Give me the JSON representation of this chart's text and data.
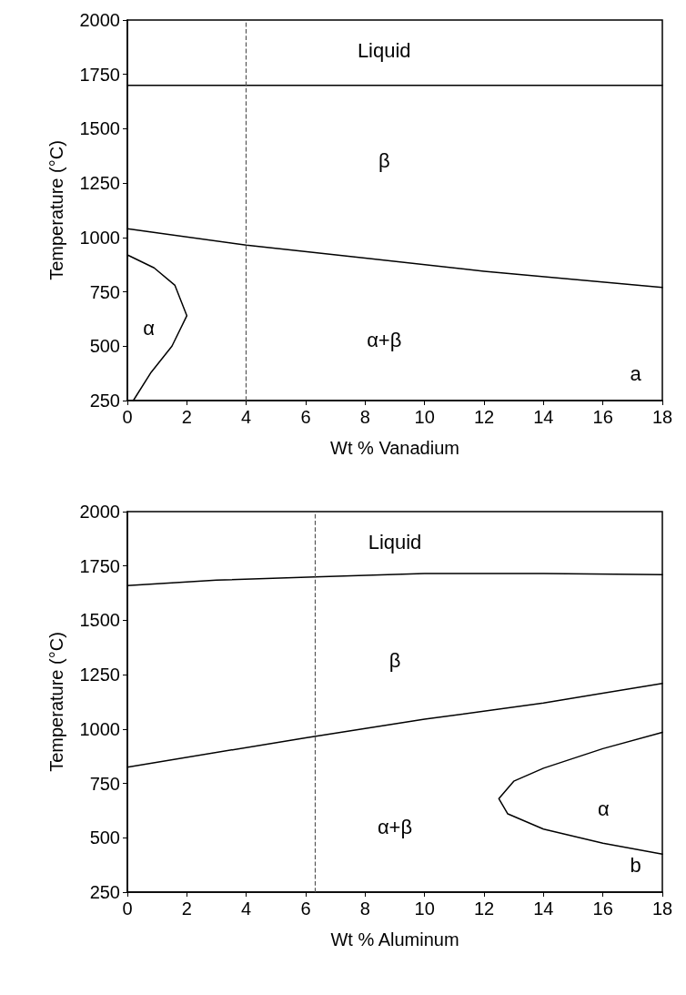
{
  "chart_data": [
    {
      "type": "line",
      "xlabel": "Wt % Vanadium",
      "ylabel": "Temperature (°C)",
      "xlim": [
        0,
        18
      ],
      "xticks": [
        0,
        2,
        4,
        6,
        8,
        10,
        12,
        14,
        16,
        18
      ],
      "ylim": [
        250,
        2000
      ],
      "yticks": [
        250,
        500,
        750,
        1000,
        1250,
        1500,
        1750,
        2000
      ],
      "grid": false,
      "marker": "none",
      "line_style": "solid",
      "series": [
        {
          "color": "#000000",
          "x": [
            0,
            18
          ],
          "values": [
            1700,
            1700
          ]
        },
        {
          "color": "#000000",
          "x": [
            0,
            4,
            8,
            12,
            18
          ],
          "values": [
            1040,
            965,
            905,
            845,
            770
          ]
        },
        {
          "color": "#000000",
          "x": [
            0.2,
            0.8,
            1.5,
            2.0,
            1.6,
            0.9,
            0
          ],
          "values": [
            250,
            380,
            500,
            640,
            780,
            860,
            920
          ]
        }
      ],
      "ref_lines": [
        {
          "axis": "x",
          "value": 4,
          "color": "#555555",
          "line_style": "dashed"
        }
      ],
      "annotations": [
        "Liquid",
        "β",
        "α",
        "α+β",
        "a"
      ]
    },
    {
      "type": "line",
      "xlabel": "Wt % Aluminum",
      "ylabel": "Temperature (°C)",
      "xlim": [
        0,
        18
      ],
      "xticks": [
        0,
        2,
        4,
        6,
        8,
        10,
        12,
        14,
        16,
        18
      ],
      "ylim": [
        250,
        2000
      ],
      "yticks": [
        250,
        500,
        750,
        1000,
        1250,
        1500,
        1750,
        2000
      ],
      "grid": false,
      "marker": "none",
      "line_style": "solid",
      "series": [
        {
          "color": "#000000",
          "x": [
            0,
            3,
            6.3,
            10,
            14,
            18
          ],
          "values": [
            1660,
            1685,
            1700,
            1715,
            1715,
            1710
          ]
        },
        {
          "color": "#000000",
          "x": [
            0,
            6,
            10,
            14,
            18
          ],
          "values": [
            825,
            960,
            1045,
            1120,
            1210
          ]
        },
        {
          "color": "#000000",
          "x": [
            18,
            16,
            14,
            13,
            12.5,
            12.8,
            14,
            16,
            18
          ],
          "values": [
            985,
            910,
            820,
            760,
            680,
            610,
            540,
            475,
            425
          ]
        }
      ],
      "ref_lines": [
        {
          "axis": "x",
          "value": 6.3,
          "color": "#555555",
          "line_style": "dashed"
        }
      ],
      "annotations": [
        "Liquid",
        "β",
        "α",
        "α+β",
        "b"
      ]
    }
  ]
}
